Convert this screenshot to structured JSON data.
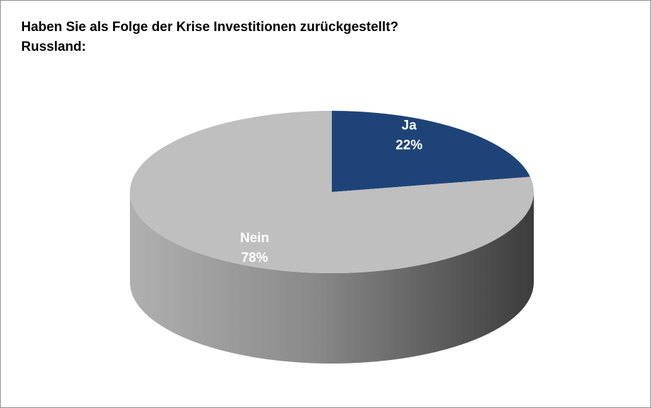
{
  "chart_data": {
    "type": "pie",
    "title": "Haben Sie als Folge der Krise Investitionen zurückgestellt?",
    "subtitle": "Russland:",
    "categories": [
      "Ja",
      "Nein"
    ],
    "values": [
      22,
      78
    ],
    "value_labels": [
      "22%",
      "78%"
    ],
    "colors": [
      "#1e4477",
      "#bfbfbf"
    ]
  }
}
